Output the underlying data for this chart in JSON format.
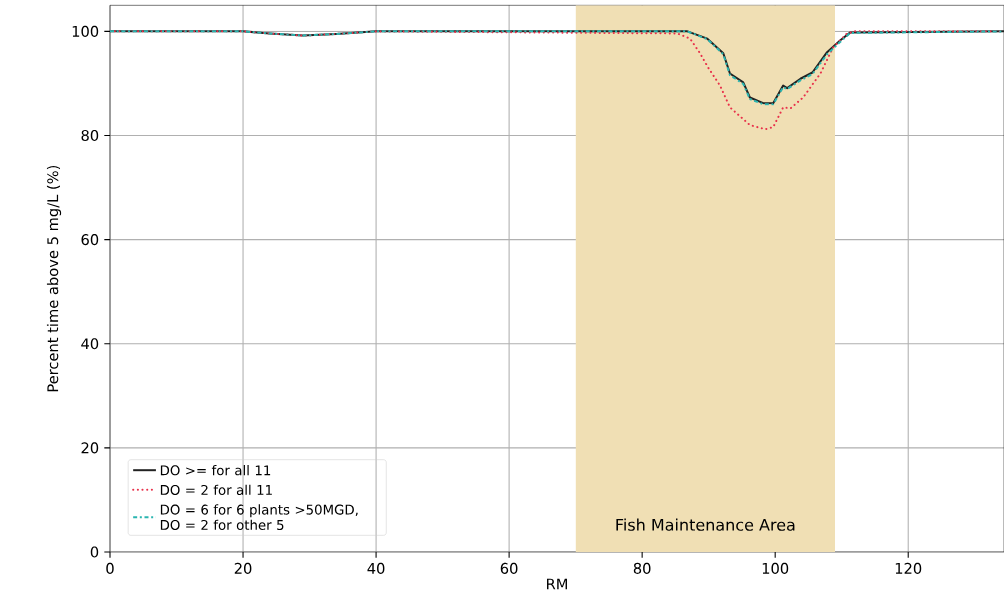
{
  "chart_data": {
    "type": "line",
    "xlabel": "RM",
    "ylabel": "Percent time above 5 mg/L (%)",
    "xlim": [
      0,
      134.4
    ],
    "ylim": [
      0,
      105
    ],
    "xticks": [
      0,
      20,
      40,
      60,
      80,
      100,
      120
    ],
    "yticks": [
      0,
      20,
      40,
      60,
      80,
      100
    ],
    "grid": true,
    "legend": "bottom left",
    "marker": "none",
    "bands": [
      {
        "axis": "x",
        "from": 70,
        "to": 109,
        "label": "Fish Maintenance Area",
        "color": "#f0dfb4"
      }
    ],
    "series": [
      {
        "name": "DO >= for all 11",
        "color": "#222222",
        "line_style": "solid",
        "x": [
          0,
          20,
          24,
          29,
          34,
          40,
          86.8,
          89.8,
          92.2,
          93.2,
          95.2,
          96.2,
          98.2,
          99.7,
          101.2,
          101.8,
          103.8,
          105.6,
          107.8,
          109.8,
          111.3,
          134.4
        ],
        "values": [
          100,
          100,
          99.6,
          99.2,
          99.5,
          100,
          100,
          98.6,
          95.8,
          91.9,
          90.2,
          87.3,
          86.2,
          86.2,
          89.6,
          89.1,
          90.9,
          92.1,
          96.0,
          98.3,
          99.8,
          100
        ]
      },
      {
        "name": "DO = 2 for all 11",
        "color": "#e8304a",
        "line_style": "dotted",
        "x": [
          0,
          20,
          24,
          29,
          34,
          40,
          85.3,
          87.2,
          88.7,
          89.9,
          91.7,
          93.2,
          96.2,
          98.5,
          99.7,
          101.2,
          102.3,
          104.2,
          106.8,
          108.7,
          110.8,
          112,
          134.4
        ],
        "values": [
          100,
          100,
          99.6,
          99.2,
          99.5,
          100,
          99.6,
          98.6,
          95.8,
          93.1,
          89.6,
          85.4,
          82.0,
          81.2,
          81.6,
          85.4,
          85.2,
          87.3,
          91.9,
          96.9,
          99.6,
          100,
          100
        ]
      },
      {
        "name": "DO = 6 for 6 plants >50MGD, DO = 2 for other 5",
        "color": "#2ab5b0",
        "line_style": "dashdot",
        "x": [
          0,
          20,
          24,
          29,
          34,
          40,
          86.8,
          89.8,
          92.2,
          93.2,
          95.2,
          96.2,
          98.2,
          99.7,
          101.2,
          101.8,
          103.8,
          105.6,
          107.8,
          109.8,
          111.3,
          134.4
        ],
        "values": [
          100,
          100,
          99.6,
          99.2,
          99.5,
          100,
          100,
          98.5,
          95.6,
          91.6,
          89.9,
          87.0,
          86.0,
          86.0,
          89.3,
          88.9,
          90.6,
          91.8,
          95.6,
          98.0,
          99.7,
          100
        ]
      }
    ]
  }
}
